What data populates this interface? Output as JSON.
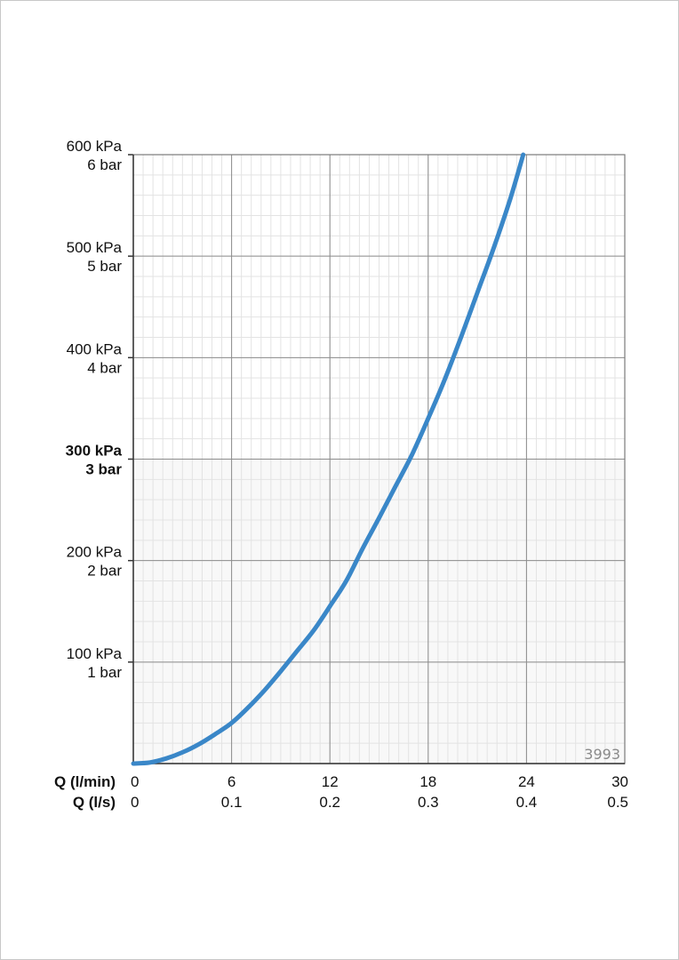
{
  "chart_data": {
    "type": "line",
    "code": "3993",
    "x_rows": [
      {
        "label": "Q (l/min)",
        "ticks": [
          "0",
          "6",
          "12",
          "18",
          "24",
          "30"
        ]
      },
      {
        "label": "Q (l/s)",
        "ticks": [
          "0",
          "0.1",
          "0.2",
          "0.3",
          "0.4",
          "0.5"
        ]
      }
    ],
    "y_ticks": [
      {
        "value": 600,
        "kpa": "600 kPa",
        "bar": "6 bar",
        "bold": false
      },
      {
        "value": 500,
        "kpa": "500 kPa",
        "bar": "5 bar",
        "bold": false
      },
      {
        "value": 400,
        "kpa": "400 kPa",
        "bar": "4 bar",
        "bold": false
      },
      {
        "value": 300,
        "kpa": "300 kPa",
        "bar": "3 bar",
        "bold": true
      },
      {
        "value": 200,
        "kpa": "200 kPa",
        "bar": "2 bar",
        "bold": false
      },
      {
        "value": 100,
        "kpa": "100 kPa",
        "bar": "1 bar",
        "bold": false
      }
    ],
    "xlim": [
      0,
      30
    ],
    "ylim": [
      0,
      600
    ],
    "grid": true,
    "series": [
      {
        "color": "#3a87c8",
        "x": [
          0,
          1,
          2,
          3,
          4,
          5,
          6,
          7,
          8,
          9,
          10,
          11,
          12,
          13,
          14,
          15,
          16,
          17,
          18,
          19,
          20,
          21,
          22,
          23,
          23.8
        ],
        "y": [
          0,
          1,
          5,
          11,
          19,
          29,
          40,
          55,
          72,
          91,
          111,
          131,
          155,
          180,
          212,
          242,
          273,
          304,
          340,
          378,
          420,
          464,
          508,
          556,
          600
        ]
      }
    ]
  }
}
